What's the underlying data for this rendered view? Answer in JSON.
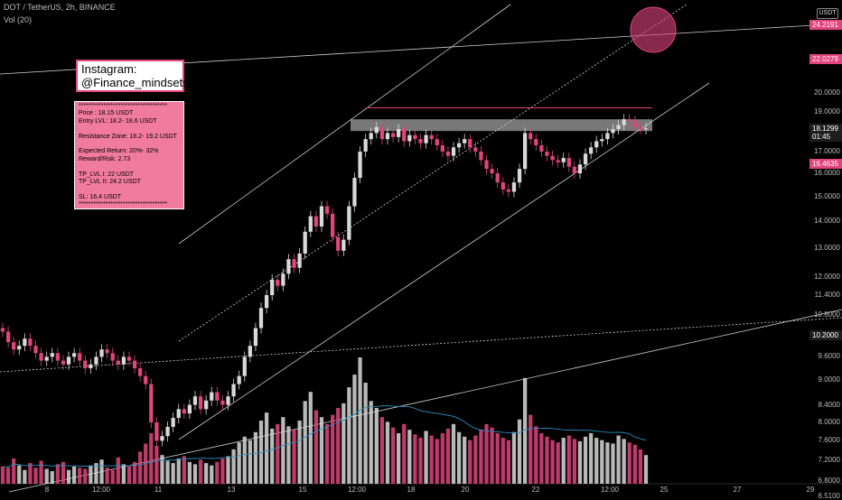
{
  "header": {
    "symbol_line": "DOT / TetherUS, 2h, BINANCE",
    "volume_indicator": "Vol (20)"
  },
  "currency_button": "USDT",
  "annotations": {
    "instagram_line1": "Instagram:",
    "instagram_line2": "@Finance_mindsets",
    "info_lines": [
      "************************************",
      "Price : 18.15 USDT",
      "Entry LVL: 18.2- 18.6 USDT",
      "",
      "Resistance Zone: 18.2- 19.2 USDT",
      "",
      "Expected Return: 20%- 32%",
      "Reward/Risk: 2.73",
      "",
      "TP_LVL I: 22 USDT",
      "TP_LVL II: 24.2 USDT",
      "",
      "SL: 16.4 USDT",
      "************************************"
    ]
  },
  "price_axis": {
    "labels": [
      "20.0000",
      "19.0000",
      "17.0000",
      "16.0000",
      "15.0000",
      "14.0000",
      "13.0000",
      "12.0000",
      "11.4000",
      "10.8000",
      "9.6000",
      "9.0000",
      "8.4000",
      "8.0000",
      "7.6000",
      "7.2000",
      "6.8000",
      "6.5100"
    ],
    "tags": [
      {
        "text": "24.2191",
        "color": "#e0457b",
        "value": 24.2191
      },
      {
        "text": "22.0279",
        "color": "#e0457b",
        "value": 22.0279
      },
      {
        "text": "18.1299",
        "color": "#1e1e1e",
        "value": 18.1299
      },
      {
        "text": "01:45",
        "color": "#1e1e1e",
        "value": 17.75
      },
      {
        "text": "16.4635",
        "color": "#e0457b",
        "value": 16.4635
      },
      {
        "text": "10.2000",
        "color": "#1e1e1e",
        "value": 10.2
      }
    ]
  },
  "time_axis": {
    "labels": [
      "8",
      "12:00",
      "11",
      "13",
      "15",
      "12:00",
      "18",
      "20",
      "22",
      "12:00",
      "25",
      "27",
      "29"
    ]
  },
  "chart_data": {
    "type": "candlestick",
    "title": "DOT / TetherUS, 2h, BINANCE",
    "ylim": [
      6.51,
      25.6
    ],
    "y_scale": "log",
    "volume_indicator": "Vol (20)",
    "key_levels": {
      "price": 18.15,
      "entry": [
        18.2,
        18.6
      ],
      "resistance_zone": [
        18.2,
        19.2
      ],
      "tp1": 22,
      "tp2": 24.2,
      "sl": 16.4
    },
    "colors": {
      "up": "#d9d9d9",
      "down": "#e0457b",
      "volume_ma": "#2a8fbd"
    },
    "closes": [
      10.3,
      10.0,
      9.8,
      9.9,
      10.1,
      9.9,
      9.7,
      9.5,
      9.6,
      9.7,
      9.5,
      9.4,
      9.6,
      9.7,
      9.5,
      9.3,
      9.4,
      9.6,
      9.8,
      9.7,
      9.5,
      9.4,
      9.6,
      9.5,
      9.3,
      9.1,
      8.9,
      8.0,
      7.6,
      7.7,
      7.9,
      8.1,
      8.3,
      8.2,
      8.4,
      8.6,
      8.3,
      8.5,
      8.7,
      8.5,
      8.4,
      8.6,
      8.9,
      9.1,
      9.6,
      9.9,
      10.4,
      11.0,
      11.4,
      11.9,
      11.7,
      12.1,
      12.6,
      12.3,
      12.8,
      13.6,
      14.2,
      13.8,
      14.6,
      14.3,
      13.4,
      12.9,
      13.3,
      14.6,
      15.8,
      17.0,
      17.6,
      17.9,
      18.2,
      17.6,
      17.9,
      17.7,
      18.1,
      17.5,
      17.8,
      17.6,
      17.4,
      17.8,
      17.6,
      17.3,
      17.0,
      16.8,
      17.2,
      17.4,
      17.6,
      17.2,
      17.0,
      16.6,
      16.2,
      16.0,
      15.6,
      15.3,
      15.2,
      15.6,
      16.2,
      17.9,
      17.6,
      17.3,
      17.0,
      16.8,
      16.6,
      16.5,
      16.7,
      16.3,
      16.0,
      16.4,
      16.9,
      17.2,
      17.5,
      17.6,
      17.9,
      18.1,
      18.3,
      18.6,
      18.5,
      18.2,
      18.1,
      18.13
    ],
    "volumes": [
      15,
      14,
      22,
      16,
      12,
      18,
      14,
      20,
      13,
      11,
      17,
      19,
      12,
      15,
      14,
      13,
      16,
      18,
      21,
      14,
      12,
      23,
      17,
      15,
      19,
      28,
      35,
      44,
      33,
      25,
      20,
      18,
      22,
      24,
      19,
      17,
      21,
      18,
      16,
      19,
      22,
      24,
      30,
      36,
      41,
      38,
      45,
      55,
      62,
      48,
      52,
      58,
      50,
      47,
      55,
      72,
      80,
      64,
      58,
      52,
      60,
      66,
      70,
      84,
      95,
      110,
      88,
      72,
      66,
      58,
      54,
      49,
      44,
      52,
      47,
      43,
      40,
      46,
      42,
      39,
      44,
      48,
      52,
      45,
      41,
      38,
      42,
      47,
      52,
      49,
      44,
      40,
      38,
      45,
      56,
      92,
      60,
      50,
      44,
      41,
      38,
      36,
      40,
      42,
      39,
      37,
      41,
      44,
      40,
      38,
      36,
      35,
      42,
      39,
      36,
      34,
      30,
      25
    ]
  }
}
